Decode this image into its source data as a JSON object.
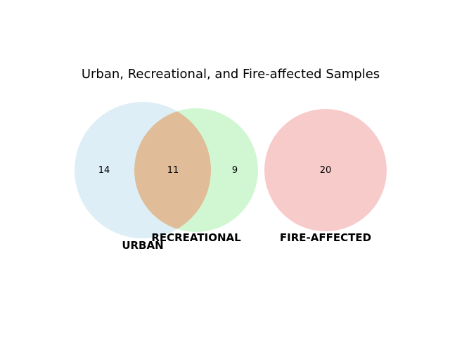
{
  "diagram": {
    "title": "Urban, Recreational, and Fire-affected Samples",
    "sets": {
      "urban": {
        "label": "URBAN",
        "count": "14",
        "color": "#ddeef6"
      },
      "recreational": {
        "label": "RECREATIONAL",
        "count": "9",
        "color": "#d0f7d2"
      },
      "fire_affected": {
        "label": "FIRE-AFFECTED",
        "count": "20",
        "color": "#f8cbcb"
      }
    },
    "intersections": {
      "urban_recreational": {
        "count": "11",
        "color": "#e0bc98"
      }
    }
  }
}
